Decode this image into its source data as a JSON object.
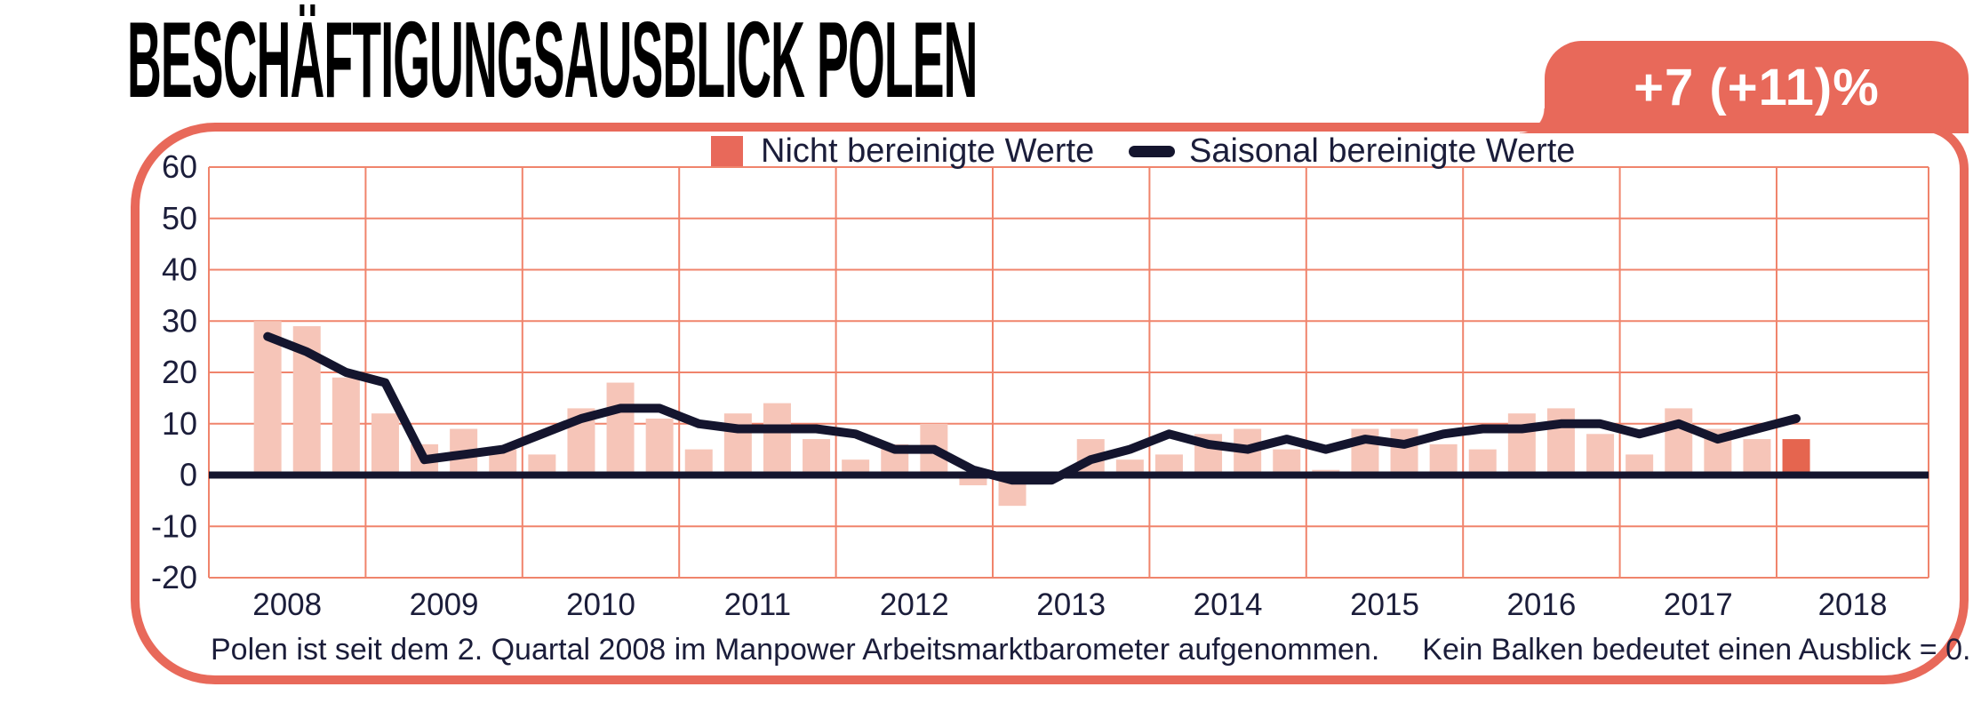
{
  "title": "BESCHÄFTIGUNGSAUSBLICK POLEN",
  "badge": {
    "label": "+7 (+11)%"
  },
  "legend": {
    "bars_label": "Nicht bereinigte Werte",
    "line_label": "Saisonal bereinigte Werte"
  },
  "footnote": {
    "part1": "Polen ist seit dem 2. Quartal 2008 im Manpower Arbeitsmarktbarometer aufgenommen.",
    "part2": "Kein Balken bedeutet einen Ausblick = 0."
  },
  "colors": {
    "accent_salmon": "#E8695A",
    "bar_light": "#F6C5B8",
    "bar_highlight": "#E5654F",
    "gridline": "#F0846C",
    "line_dark": "#14152E",
    "tick_text": "#1B1D3A"
  },
  "chart_data": {
    "type": "bar",
    "title": "Beschäftigungsausblick Polen",
    "categories": [
      "2008 Q2",
      "2008 Q3",
      "2008 Q4",
      "2009 Q1",
      "2009 Q2",
      "2009 Q3",
      "2009 Q4",
      "2010 Q1",
      "2010 Q2",
      "2010 Q3",
      "2010 Q4",
      "2011 Q1",
      "2011 Q2",
      "2011 Q3",
      "2011 Q4",
      "2012 Q1",
      "2012 Q2",
      "2012 Q3",
      "2012 Q4",
      "2013 Q1",
      "2013 Q2",
      "2013 Q3",
      "2013 Q4",
      "2014 Q1",
      "2014 Q2",
      "2014 Q3",
      "2014 Q4",
      "2015 Q1",
      "2015 Q2",
      "2015 Q3",
      "2015 Q4",
      "2016 Q1",
      "2016 Q2",
      "2016 Q3",
      "2016 Q4",
      "2017 Q1",
      "2017 Q2",
      "2017 Q3",
      "2017 Q4",
      "2018 Q1"
    ],
    "series": [
      {
        "name": "Nicht bereinigte Werte",
        "type": "bar",
        "values": [
          30,
          29,
          19,
          12,
          6,
          9,
          5,
          4,
          13,
          18,
          11,
          5,
          12,
          14,
          7,
          3,
          6,
          10,
          -2,
          -6,
          0,
          7,
          3,
          4,
          8,
          9,
          5,
          1,
          9,
          9,
          6,
          5,
          12,
          13,
          8,
          4,
          13,
          9,
          7,
          7
        ]
      },
      {
        "name": "Saisonal bereinigte Werte",
        "type": "line",
        "values": [
          27,
          24,
          20,
          18,
          3,
          4,
          5,
          8,
          11,
          13,
          13,
          10,
          9,
          9,
          9,
          8,
          5,
          5,
          1,
          -1,
          -1,
          3,
          5,
          8,
          6,
          5,
          7,
          5,
          7,
          6,
          8,
          9,
          9,
          10,
          10,
          8,
          10,
          7,
          9,
          11
        ]
      }
    ],
    "highlight_last_bar": true,
    "current_quarter_value_unadjusted": 7,
    "current_quarter_value_adjusted": 11,
    "x_tick_labels": [
      "2008",
      "2009",
      "2010",
      "2011",
      "2012",
      "2013",
      "2014",
      "2015",
      "2016",
      "2017",
      "2018"
    ],
    "y_ticks": [
      60,
      50,
      40,
      30,
      20,
      10,
      0,
      -10,
      -20
    ],
    "ylim": [
      -20,
      60
    ],
    "grid": true,
    "legend_position": "top",
    "note": "Kein Balken bedeutet einen Ausblick = 0 (2013 Q2 = 0)"
  }
}
